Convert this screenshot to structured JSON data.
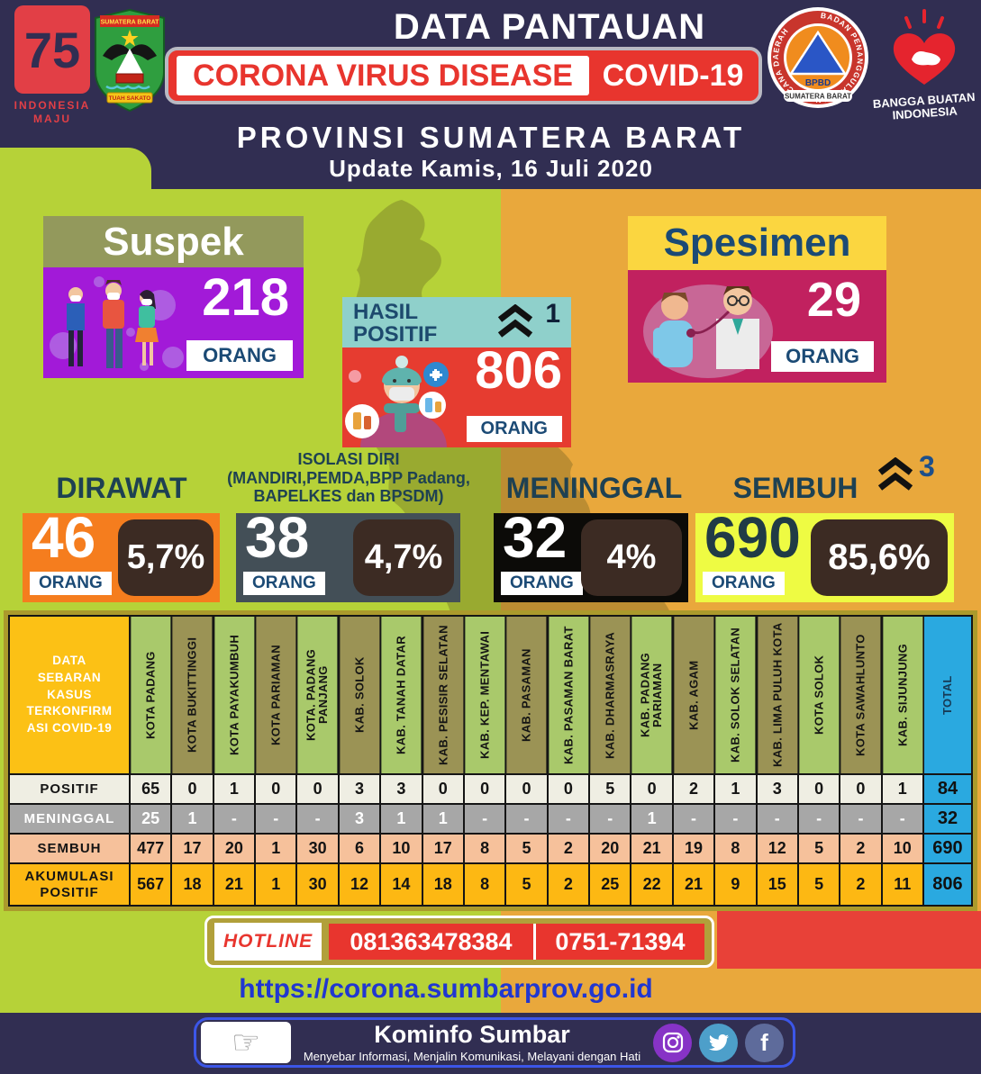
{
  "header": {
    "title": "DATA PANTAUAN",
    "banner_main": "CORONA VIRUS DISEASE",
    "banner_covid": "COVID-19",
    "province": "PROVINSI SUMATERA BARAT",
    "update_date": "Update Kamis, 16 Juli 2020"
  },
  "logos": {
    "indonesia75": {
      "number": "75",
      "caption": "INDONESIA\nMAJU"
    },
    "sumbar_crest": {
      "title": "SUMATERA BARAT",
      "ribbon": "TUAH SAKATO"
    },
    "bpbd": {
      "ring_text": "BADAN PENANGGULANGAN BENCANA DAERAH",
      "name": "BPBD",
      "region": "SUMATERA BARAT"
    },
    "bangga_buatan": {
      "label": "BANGGA BUATAN\nINDONESIA"
    }
  },
  "cards": {
    "suspek": {
      "title": "Suspek",
      "value": "218",
      "unit": "ORANG"
    },
    "hasil_positif": {
      "title": "HASIL\nPOSITIF",
      "delta": "1",
      "value": "806",
      "unit": "ORANG"
    },
    "spesimen": {
      "title": "Spesimen",
      "value": "29",
      "unit": "ORANG"
    }
  },
  "stats": [
    {
      "label": "DIRAWAT",
      "value": "46",
      "unit": "ORANG",
      "percent": "5,7%"
    },
    {
      "label": "ISOLASI DIRI\n(MANDIRI,PEMDA,BPP Padang,\nBAPELKES dan BPSDM)",
      "value": "38",
      "unit": "ORANG",
      "percent": "4,7%"
    },
    {
      "label": "MENINGGAL",
      "value": "32",
      "unit": "ORANG",
      "percent": "4%"
    },
    {
      "label": "SEMBUH",
      "delta": "3",
      "value": "690",
      "unit": "ORANG",
      "percent": "85,6%"
    }
  ],
  "table": {
    "corner_label": "DATA\nSEBARAN\nKASUS\nTERKONFIRM\nASI COVID-19",
    "total_label": "TOTAL",
    "columns": [
      "KOTA PADANG",
      "KOTA BUKITTINGGI",
      "KOTA PAYAKUMBUH",
      "KOTA PARIAMAN",
      "KOTA. PADANG PANJANG",
      "KAB. SOLOK",
      "KAB. TANAH DATAR",
      "KAB. PESISIR SELATAN",
      "KAB. KEP. MENTAWAI",
      "KAB. PASAMAN",
      "KAB. PASAMAN BARAT",
      "KAB. DHARMASRAYA",
      "KAB. PADANG PARIAMAN",
      "KAB. AGAM",
      "KAB. SOLOK SELATAN",
      "KAB. LIMA PULUH KOTA",
      "KOTA SOLOK",
      "KOTA SAWAHLUNTO",
      "KAB. SIJUNJUNG"
    ],
    "rows": [
      {
        "label": "POSITIF",
        "values": [
          "65",
          "0",
          "1",
          "0",
          "0",
          "3",
          "3",
          "0",
          "0",
          "0",
          "0",
          "5",
          "0",
          "2",
          "1",
          "3",
          "0",
          "0",
          "1"
        ],
        "total": "84"
      },
      {
        "label": "MENINGGAL",
        "values": [
          "25",
          "1",
          "-",
          "-",
          "-",
          "3",
          "1",
          "1",
          "-",
          "-",
          "-",
          "-",
          "1",
          "-",
          "-",
          "-",
          "-",
          "-",
          "-"
        ],
        "total": "32"
      },
      {
        "label": "SEMBUH",
        "values": [
          "477",
          "17",
          "20",
          "1",
          "30",
          "6",
          "10",
          "17",
          "8",
          "5",
          "2",
          "20",
          "21",
          "19",
          "8",
          "12",
          "5",
          "2",
          "10"
        ],
        "total": "690"
      },
      {
        "label": "AKUMULASI\nPOSITIF",
        "values": [
          "567",
          "18",
          "21",
          "1",
          "30",
          "12",
          "14",
          "18",
          "8",
          "5",
          "2",
          "25",
          "22",
          "21",
          "9",
          "15",
          "5",
          "2",
          "11"
        ],
        "total": "806"
      }
    ]
  },
  "chart_data": {
    "type": "table",
    "title": "DATA SEBARAN KASUS TERKONFIRMASI COVID-19",
    "categories": [
      "KOTA PADANG",
      "KOTA BUKITTINGGI",
      "KOTA PAYAKUMBUH",
      "KOTA PARIAMAN",
      "KOTA. PADANG PANJANG",
      "KAB. SOLOK",
      "KAB. TANAH DATAR",
      "KAB. PESISIR SELATAN",
      "KAB. KEP. MENTAWAI",
      "KAB. PASAMAN",
      "KAB. PASAMAN BARAT",
      "KAB. DHARMASRAYA",
      "KAB. PADANG PARIAMAN",
      "KAB. AGAM",
      "KAB. SOLOK SELATAN",
      "KAB. LIMA PULUH KOTA",
      "KOTA SOLOK",
      "KOTA SAWAHLUNTO",
      "KAB. SIJUNJUNG"
    ],
    "series": [
      {
        "name": "POSITIF",
        "values": [
          65,
          0,
          1,
          0,
          0,
          3,
          3,
          0,
          0,
          0,
          0,
          5,
          0,
          2,
          1,
          3,
          0,
          0,
          1
        ],
        "total": 84
      },
      {
        "name": "MENINGGAL",
        "values": [
          25,
          1,
          null,
          null,
          null,
          3,
          1,
          1,
          null,
          null,
          null,
          null,
          1,
          null,
          null,
          null,
          null,
          null,
          null
        ],
        "total": 32
      },
      {
        "name": "SEMBUH",
        "values": [
          477,
          17,
          20,
          1,
          30,
          6,
          10,
          17,
          8,
          5,
          2,
          20,
          21,
          19,
          8,
          12,
          5,
          2,
          10
        ],
        "total": 690
      },
      {
        "name": "AKUMULASI POSITIF",
        "values": [
          567,
          18,
          21,
          1,
          30,
          12,
          14,
          18,
          8,
          5,
          2,
          25,
          22,
          21,
          9,
          15,
          5,
          2,
          11
        ],
        "total": 806
      }
    ],
    "summary": {
      "suspek": 218,
      "hasil_positif": 806,
      "spesimen": 29,
      "dirawat": 46,
      "isolasi_diri": 38,
      "meninggal": 32,
      "sembuh": 690
    }
  },
  "hotline": {
    "label": "HOTLINE",
    "numbers": [
      "081363478384",
      "0751-71394"
    ]
  },
  "website": "https://corona.sumbarprov.go.id",
  "footer": {
    "title": "Kominfo Sumbar",
    "tagline": "Menyebar Informasi, Menjalin Komunikasi, Melayani dengan Hati"
  },
  "colors": {
    "navy": "#312e52",
    "lime": "#b6d238",
    "amber": "#e9a83c",
    "banner_red": "#e8352e",
    "suspek_purple": "#a21ad8",
    "positif_red": "#e63c30",
    "spesimen_magenta": "#c1215f",
    "dirawat_orange": "#f57d1e",
    "isolasi_slate": "#434f57",
    "meninggal_black": "#0c0b08",
    "sembuh_yellow": "#eefb43",
    "percent_brown": "#3c2b23",
    "total_blue": "#2aa9e0",
    "orang_navy": "#1b4a75"
  }
}
